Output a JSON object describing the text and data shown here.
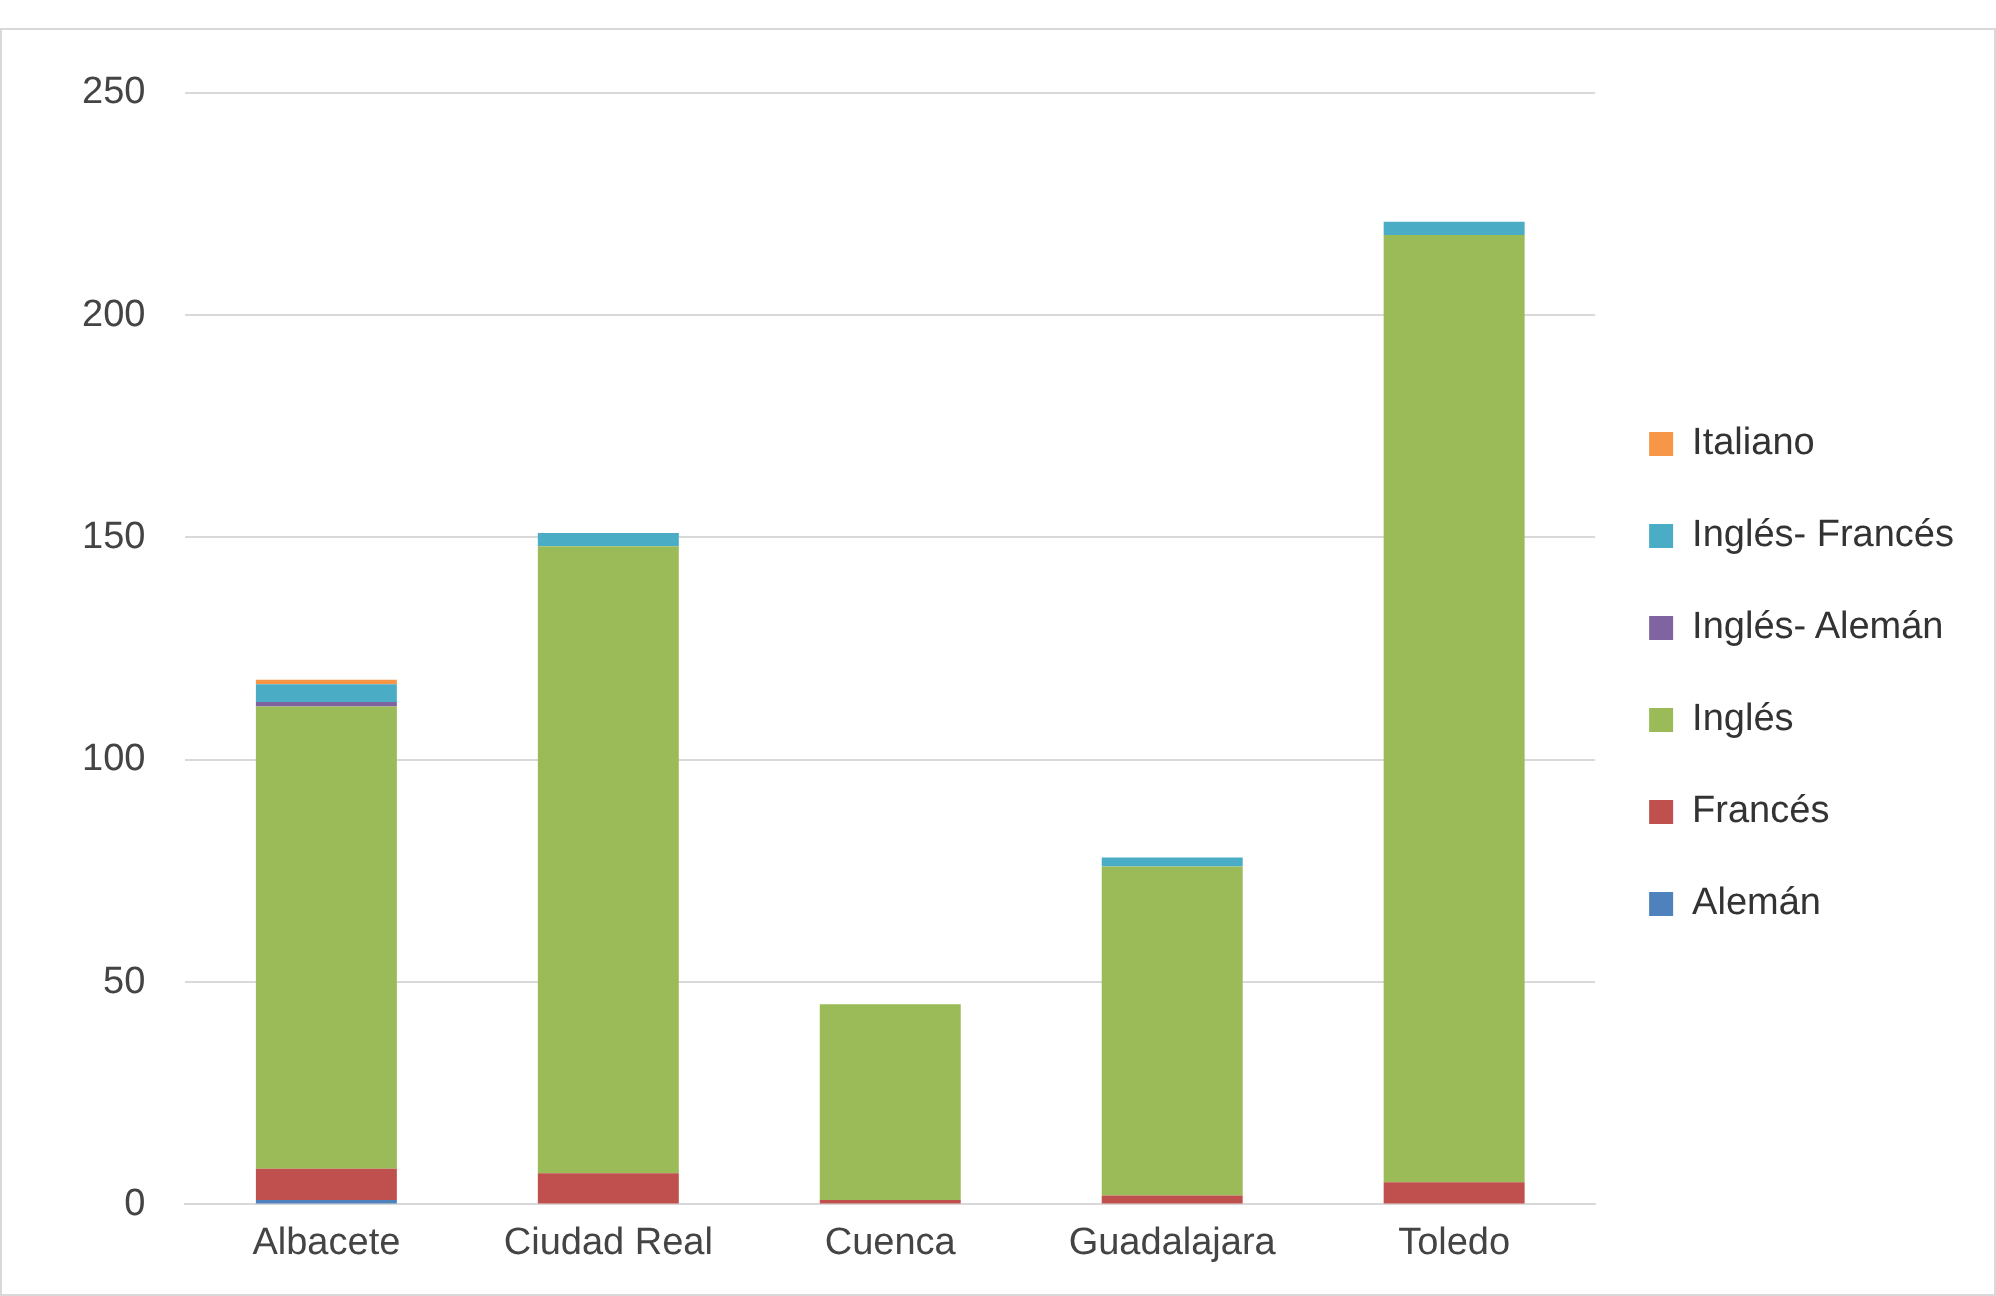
{
  "chart_data": {
    "type": "bar",
    "stacked": true,
    "categories": [
      "Albacete",
      "Ciudad Real",
      "Cuenca",
      "Guadalajara",
      "Toledo"
    ],
    "series": [
      {
        "name": "Alemán",
        "color": "#4f81bd",
        "values": [
          1,
          0,
          0,
          0,
          0
        ]
      },
      {
        "name": "Francés",
        "color": "#c0504d",
        "values": [
          7,
          7,
          1,
          2,
          5
        ]
      },
      {
        "name": "Inglés",
        "color": "#9bbb59",
        "values": [
          104,
          141,
          44,
          74,
          213
        ]
      },
      {
        "name": "Inglés- Alemán",
        "color": "#8064a2",
        "values": [
          1,
          0,
          0,
          0,
          0
        ]
      },
      {
        "name": "Inglés- Francés",
        "color": "#4bacc6",
        "values": [
          4,
          3,
          0,
          2,
          3
        ]
      },
      {
        "name": "Italiano",
        "color": "#f79646",
        "values": [
          1,
          0,
          0,
          0,
          0
        ]
      }
    ],
    "ylim": [
      0,
      250
    ],
    "yticks": [
      0,
      50,
      100,
      150,
      200,
      250
    ],
    "grid": "y",
    "legend": "right"
  }
}
